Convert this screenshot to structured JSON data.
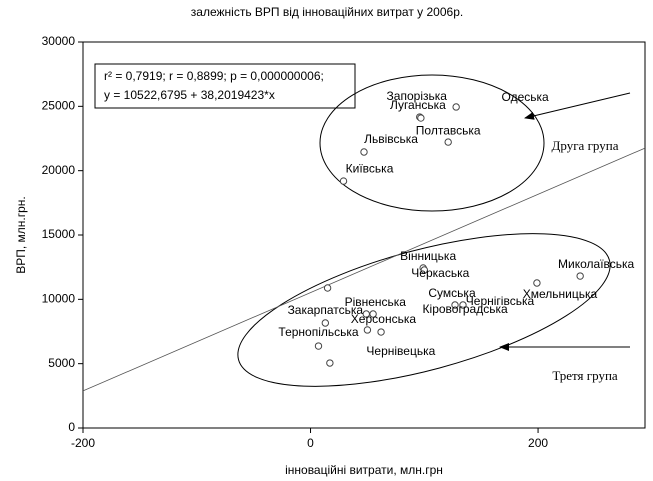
{
  "chart_data": {
    "type": "scatter",
    "title": "залежність ВРП від інноваційних витрат у 2006р.",
    "x_label": "інноваційні витрати, млн.грн",
    "y_label": "ВРП, млн.грн.",
    "stats_lines": [
      "r² = 0,7919;  r = 0,8899;  p = 0,000000006;",
      "y = 10522,6795 + 38,2019423*x"
    ],
    "group_labels": [
      "Друга група",
      "Третя група"
    ],
    "regression": {
      "intercept": 10522.6795,
      "slope": 38.2019423
    },
    "labels": [
      "Одеська",
      "Запорізька",
      "Луганська",
      "Полтавська",
      "Львівська",
      "Київська",
      "Вінницька",
      "Черкаська",
      "Миколаївська",
      "Хмельницька",
      "Сумська",
      "Чернігівська",
      "Рівненська",
      "Кіровоградська",
      "Херсонська",
      null,
      "Закарпатська",
      "Тернопільська",
      "Чернівецька",
      null
    ],
    "x": [
      128,
      96,
      97,
      121,
      47,
      29,
      99,
      100,
      237,
      199,
      127,
      134,
      49,
      55,
      50,
      62,
      13,
      7,
      17,
      15
    ],
    "values": [
      24950,
      24170,
      24090,
      22220,
      21450,
      19190,
      12440,
      12280,
      11810,
      11270,
      9560,
      9560,
      8860,
      8860,
      7620,
      7460,
      8160,
      6370,
      5050,
      10880
    ],
    "color": "#444444",
    "xlim": [
      -200,
      294
    ],
    "xticks": [
      -200,
      0,
      200
    ],
    "ylim": [
      0,
      30000
    ],
    "yticks": [
      0,
      5000,
      10000,
      15000,
      20000,
      25000,
      30000
    ]
  }
}
